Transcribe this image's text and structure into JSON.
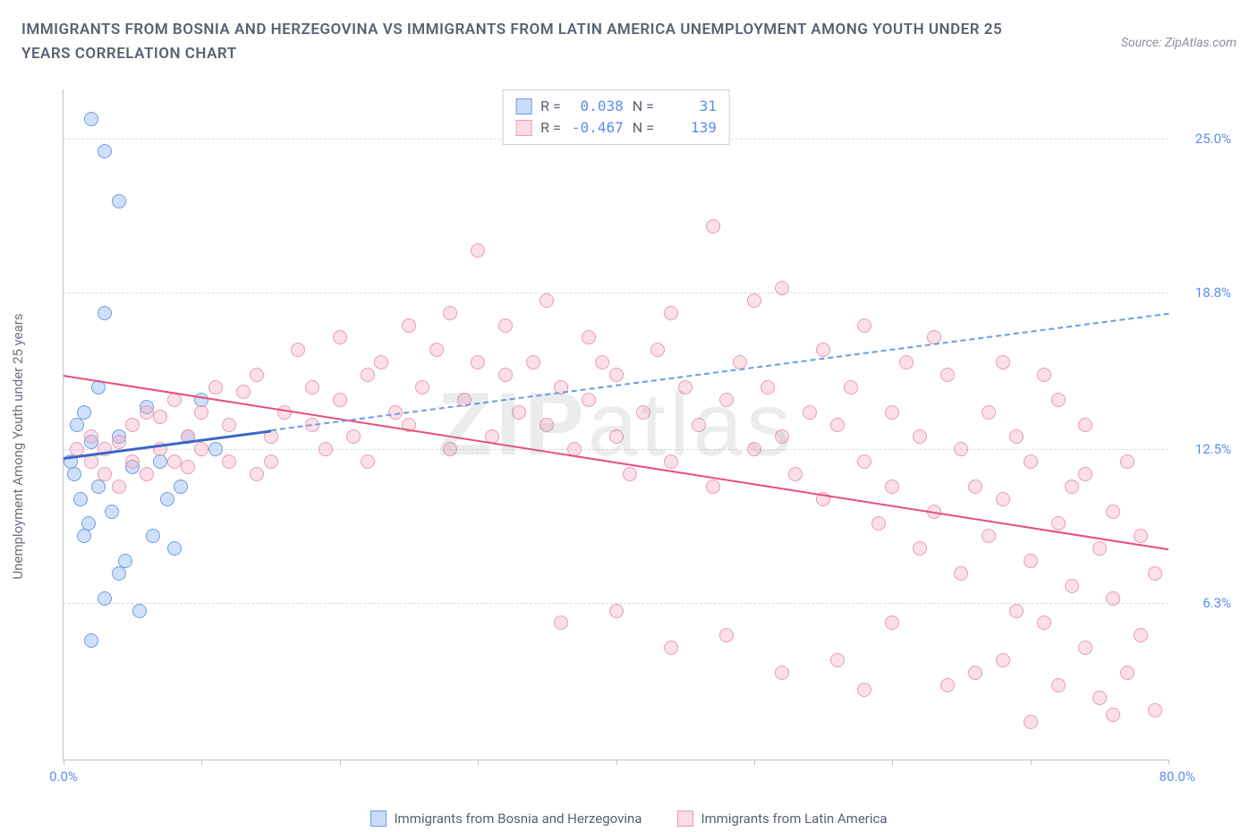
{
  "header": {
    "title": "IMMIGRANTS FROM BOSNIA AND HERZEGOVINA VS IMMIGRANTS FROM LATIN AMERICA UNEMPLOYMENT AMONG YOUTH UNDER 25 YEARS CORRELATION CHART",
    "source_prefix": "Source: ",
    "source_name": "ZipAtlas.com"
  },
  "chart": {
    "type": "scatter",
    "y_axis_label": "Unemployment Among Youth under 25 years",
    "background_color": "#ffffff",
    "grid_color": "#d8dbe0",
    "axis_color": "#c0c4cc",
    "xlim": [
      0,
      80
    ],
    "ylim": [
      0,
      27
    ],
    "x_ticks": [
      0,
      10,
      20,
      30,
      40,
      50,
      60,
      70,
      80
    ],
    "x_tick_labels": {
      "0": "0.0%",
      "80": "80.0%"
    },
    "y_ticks": [
      6.3,
      12.5,
      18.8,
      25.0
    ],
    "y_tick_labels": [
      "6.3%",
      "12.5%",
      "18.8%",
      "25.0%"
    ],
    "marker_radius": 8,
    "series": [
      {
        "id": "bosnia",
        "label": "Immigrants from Bosnia and Herzegovina",
        "color_fill": "rgba(123,167,237,0.35)",
        "color_stroke": "#6b9de8",
        "r": "0.038",
        "n": "31",
        "trend": {
          "x1": 0,
          "y1": 12.2,
          "x2": 15,
          "y2": 13.3,
          "solid_until_x": 15,
          "dash_to_x": 80,
          "dash_to_y": 18.0
        },
        "points": [
          [
            0.5,
            12.0
          ],
          [
            0.8,
            11.5
          ],
          [
            1.0,
            13.5
          ],
          [
            1.2,
            10.5
          ],
          [
            1.5,
            14.0
          ],
          [
            1.8,
            9.5
          ],
          [
            2.0,
            12.8
          ],
          [
            2.0,
            25.8
          ],
          [
            2.5,
            11.0
          ],
          [
            3.0,
            24.5
          ],
          [
            3.0,
            18.0
          ],
          [
            3.5,
            10.0
          ],
          [
            4.0,
            22.5
          ],
          [
            4.0,
            13.0
          ],
          [
            4.5,
            8.0
          ],
          [
            5.0,
            11.8
          ],
          [
            5.5,
            6.0
          ],
          [
            6.0,
            14.2
          ],
          [
            6.5,
            9.0
          ],
          [
            7.0,
            12.0
          ],
          [
            7.5,
            10.5
          ],
          [
            2.0,
            4.8
          ],
          [
            3.0,
            6.5
          ],
          [
            4.0,
            7.5
          ],
          [
            8.0,
            8.5
          ],
          [
            8.5,
            11.0
          ],
          [
            9.0,
            13.0
          ],
          [
            2.5,
            15.0
          ],
          [
            1.5,
            9.0
          ],
          [
            10.0,
            14.5
          ],
          [
            11.0,
            12.5
          ]
        ]
      },
      {
        "id": "latin",
        "label": "Immigrants from Latin America",
        "color_fill": "rgba(244,166,188,0.35)",
        "color_stroke": "#ec9ab5",
        "r": "-0.467",
        "n": "139",
        "trend": {
          "x1": 0,
          "y1": 15.5,
          "x2": 80,
          "y2": 8.5
        },
        "points": [
          [
            1,
            12.5
          ],
          [
            2,
            12.0
          ],
          [
            2,
            13.0
          ],
          [
            3,
            11.5
          ],
          [
            3,
            12.5
          ],
          [
            4,
            12.8
          ],
          [
            4,
            11.0
          ],
          [
            5,
            13.5
          ],
          [
            5,
            12.0
          ],
          [
            6,
            14.0
          ],
          [
            6,
            11.5
          ],
          [
            7,
            12.5
          ],
          [
            7,
            13.8
          ],
          [
            8,
            12.0
          ],
          [
            8,
            14.5
          ],
          [
            9,
            11.8
          ],
          [
            9,
            13.0
          ],
          [
            10,
            12.5
          ],
          [
            10,
            14.0
          ],
          [
            11,
            15.0
          ],
          [
            12,
            12.0
          ],
          [
            12,
            13.5
          ],
          [
            13,
            14.8
          ],
          [
            14,
            11.5
          ],
          [
            14,
            15.5
          ],
          [
            15,
            13.0
          ],
          [
            15,
            12.0
          ],
          [
            16,
            14.0
          ],
          [
            17,
            16.5
          ],
          [
            18,
            13.5
          ],
          [
            18,
            15.0
          ],
          [
            19,
            12.5
          ],
          [
            20,
            14.5
          ],
          [
            20,
            17.0
          ],
          [
            21,
            13.0
          ],
          [
            22,
            15.5
          ],
          [
            22,
            12.0
          ],
          [
            23,
            16.0
          ],
          [
            24,
            14.0
          ],
          [
            25,
            17.5
          ],
          [
            25,
            13.5
          ],
          [
            26,
            15.0
          ],
          [
            27,
            16.5
          ],
          [
            28,
            12.5
          ],
          [
            28,
            18.0
          ],
          [
            29,
            14.5
          ],
          [
            30,
            16.0
          ],
          [
            30,
            20.5
          ],
          [
            31,
            13.0
          ],
          [
            32,
            15.5
          ],
          [
            32,
            17.5
          ],
          [
            33,
            14.0
          ],
          [
            34,
            16.0
          ],
          [
            35,
            13.5
          ],
          [
            35,
            18.5
          ],
          [
            36,
            15.0
          ],
          [
            37,
            12.5
          ],
          [
            38,
            14.5
          ],
          [
            38,
            17.0
          ],
          [
            39,
            16.0
          ],
          [
            40,
            13.0
          ],
          [
            40,
            15.5
          ],
          [
            41,
            11.5
          ],
          [
            42,
            14.0
          ],
          [
            43,
            16.5
          ],
          [
            44,
            12.0
          ],
          [
            44,
            18.0
          ],
          [
            45,
            15.0
          ],
          [
            46,
            13.5
          ],
          [
            47,
            21.5
          ],
          [
            47,
            11.0
          ],
          [
            48,
            14.5
          ],
          [
            49,
            16.0
          ],
          [
            50,
            12.5
          ],
          [
            50,
            18.5
          ],
          [
            51,
            15.0
          ],
          [
            52,
            13.0
          ],
          [
            52,
            19.0
          ],
          [
            53,
            11.5
          ],
          [
            54,
            14.0
          ],
          [
            55,
            16.5
          ],
          [
            55,
            10.5
          ],
          [
            56,
            13.5
          ],
          [
            57,
            15.0
          ],
          [
            58,
            12.0
          ],
          [
            58,
            17.5
          ],
          [
            59,
            9.5
          ],
          [
            60,
            14.0
          ],
          [
            60,
            11.0
          ],
          [
            61,
            16.0
          ],
          [
            62,
            8.5
          ],
          [
            62,
            13.0
          ],
          [
            63,
            10.0
          ],
          [
            64,
            15.5
          ],
          [
            65,
            12.5
          ],
          [
            65,
            7.5
          ],
          [
            66,
            11.0
          ],
          [
            67,
            14.0
          ],
          [
            67,
            9.0
          ],
          [
            68,
            10.5
          ],
          [
            69,
            13.0
          ],
          [
            69,
            6.0
          ],
          [
            70,
            8.0
          ],
          [
            70,
            12.0
          ],
          [
            71,
            15.5
          ],
          [
            71,
            5.5
          ],
          [
            72,
            9.5
          ],
          [
            72,
            3.0
          ],
          [
            73,
            11.0
          ],
          [
            73,
            7.0
          ],
          [
            74,
            13.5
          ],
          [
            74,
            4.5
          ],
          [
            75,
            8.5
          ],
          [
            75,
            2.5
          ],
          [
            76,
            10.0
          ],
          [
            76,
            6.5
          ],
          [
            77,
            12.0
          ],
          [
            77,
            3.5
          ],
          [
            78,
            5.0
          ],
          [
            78,
            9.0
          ],
          [
            79,
            7.5
          ],
          [
            79,
            2.0
          ],
          [
            66,
            3.5
          ],
          [
            68,
            4.0
          ],
          [
            64,
            3.0
          ],
          [
            60,
            5.5
          ],
          [
            63,
            17.0
          ],
          [
            56,
            4.0
          ],
          [
            52,
            3.5
          ],
          [
            48,
            5.0
          ],
          [
            44,
            4.5
          ],
          [
            40,
            6.0
          ],
          [
            36,
            5.5
          ],
          [
            58,
            2.8
          ],
          [
            70,
            1.5
          ],
          [
            76,
            1.8
          ],
          [
            74,
            11.5
          ],
          [
            72,
            14.5
          ],
          [
            68,
            16.0
          ]
        ]
      }
    ]
  },
  "watermark": {
    "part1": "ZIP",
    "part2": "atlas"
  },
  "bottom_legend": {
    "item1": "Immigrants from Bosnia and Herzegovina",
    "item2": "Immigrants from Latin America"
  }
}
